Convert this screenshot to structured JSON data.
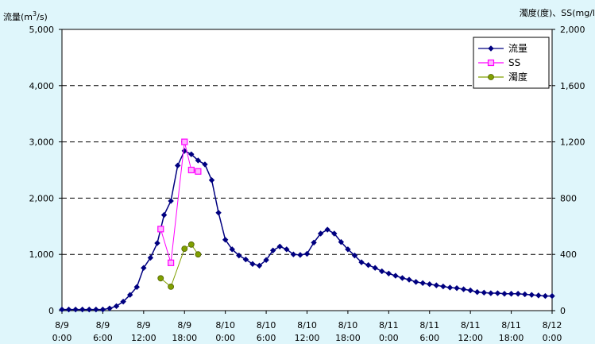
{
  "chart_data": {
    "type": "line",
    "title": "",
    "ylabel_left": "流量(m3/s)",
    "ylabel_right": "濁度(度)、SS(mg/l",
    "ylim_left": [
      0,
      5000
    ],
    "ylim_right": [
      0,
      2000
    ],
    "yticks_left": [
      "0",
      "1,000",
      "2,000",
      "3,000",
      "4,000",
      "5,000"
    ],
    "yticks_right": [
      "0",
      "400",
      "800",
      "1,200",
      "1,600",
      "2,000"
    ],
    "xlim_hours": [
      0,
      72
    ],
    "x_tick_labels": [
      [
        "8/9",
        "0:00"
      ],
      [
        "8/9",
        "6:00"
      ],
      [
        "8/9",
        "12:00"
      ],
      [
        "8/9",
        "18:00"
      ],
      [
        "8/10",
        "0:00"
      ],
      [
        "8/10",
        "6:00"
      ],
      [
        "8/10",
        "12:00"
      ],
      [
        "8/10",
        "18:00"
      ],
      [
        "8/11",
        "0:00"
      ],
      [
        "8/11",
        "6:00"
      ],
      [
        "8/11",
        "12:00"
      ],
      [
        "8/11",
        "18:00"
      ],
      [
        "8/12",
        "0:00"
      ]
    ],
    "grid": "horizontal-dashed",
    "legend_position": "top-right",
    "series": [
      {
        "name": "流量",
        "axis": "left",
        "color": "#000080",
        "marker": "diamond",
        "x": [
          0,
          1,
          2,
          3,
          4,
          5,
          6,
          7,
          8,
          9,
          10,
          11,
          12,
          13,
          14,
          15,
          16,
          17,
          18,
          19,
          20,
          21,
          22,
          23,
          24,
          25,
          26,
          27,
          28,
          29,
          30,
          31,
          32,
          33,
          34,
          35,
          36,
          37,
          38,
          39,
          40,
          41,
          42,
          43,
          44,
          45,
          46,
          47,
          48,
          49,
          50,
          51,
          52,
          53,
          54,
          55,
          56,
          57,
          58,
          59,
          60,
          61,
          62,
          63,
          64,
          65,
          66,
          67,
          68,
          69,
          70,
          71,
          72
        ],
        "values": [
          20,
          20,
          20,
          20,
          20,
          20,
          20,
          40,
          80,
          160,
          280,
          420,
          760,
          940,
          1200,
          1700,
          1950,
          2580,
          2840,
          2780,
          2670,
          2600,
          2320,
          1740,
          1260,
          1090,
          980,
          910,
          830,
          800,
          900,
          1070,
          1140,
          1090,
          1000,
          990,
          1010,
          1210,
          1370,
          1440,
          1370,
          1220,
          1090,
          980,
          860,
          810,
          760,
          700,
          660,
          620,
          580,
          550,
          510,
          490,
          470,
          450,
          430,
          410,
          400,
          380,
          360,
          330,
          320,
          310,
          310,
          300,
          300,
          300,
          290,
          280,
          270,
          260,
          260
        ]
      },
      {
        "name": "SS",
        "axis": "right",
        "color": "#ff00ff",
        "marker": "square",
        "x": [
          14.5,
          16,
          18,
          19,
          20
        ],
        "values": [
          580,
          340,
          1200,
          1000,
          990
        ]
      },
      {
        "name": "濁度",
        "axis": "right",
        "color": "#80a000",
        "marker": "circle",
        "x": [
          14.5,
          16,
          18,
          19,
          20
        ],
        "values": [
          230,
          170,
          440,
          470,
          400
        ]
      }
    ]
  }
}
